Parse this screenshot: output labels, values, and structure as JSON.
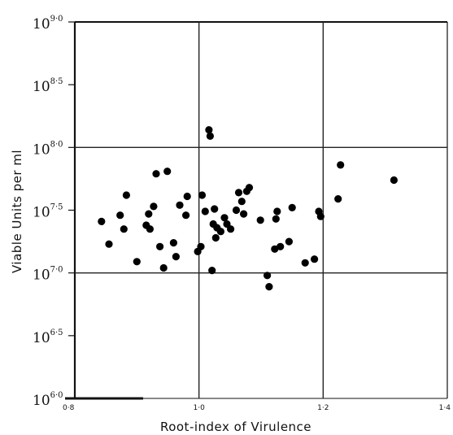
{
  "chart_data": {
    "type": "scatter",
    "title": "",
    "xlabel": "Root-index  of  Virulence",
    "ylabel": "Viable  Units per ml",
    "x_axis": {
      "min": 0.8,
      "max": 1.4,
      "ticks": [
        {
          "value": 0.8,
          "label": "0·8"
        },
        {
          "value": 1.0,
          "label": "1·0"
        },
        {
          "value": 1.2,
          "label": "1·2"
        },
        {
          "value": 1.4,
          "label": "1·4"
        }
      ]
    },
    "y_axis": {
      "scale": "log10",
      "min": 6.0,
      "max": 9.0,
      "ticks": [
        {
          "value": 6.0,
          "base": "10",
          "exp": "6·0"
        },
        {
          "value": 6.5,
          "base": "10",
          "exp": "6·5"
        },
        {
          "value": 7.0,
          "base": "10",
          "exp": "7·0"
        },
        {
          "value": 7.5,
          "base": "10",
          "exp": "7·5"
        },
        {
          "value": 8.0,
          "base": "10",
          "exp": "8·0"
        },
        {
          "value": 8.5,
          "base": "10",
          "exp": "8·5"
        },
        {
          "value": 9.0,
          "base": "10",
          "exp": "9·0"
        }
      ]
    },
    "grid": {
      "x": [
        1.0,
        1.2
      ],
      "y": [
        7.0,
        8.0
      ]
    },
    "points": [
      [
        0.843,
        7.41
      ],
      [
        0.855,
        7.23
      ],
      [
        0.873,
        7.46
      ],
      [
        0.879,
        7.35
      ],
      [
        0.883,
        7.62
      ],
      [
        0.9,
        7.09
      ],
      [
        0.915,
        7.38
      ],
      [
        0.919,
        7.47
      ],
      [
        0.921,
        7.35
      ],
      [
        0.927,
        7.53
      ],
      [
        0.931,
        7.79
      ],
      [
        0.937,
        7.21
      ],
      [
        0.943,
        7.04
      ],
      [
        0.949,
        7.81
      ],
      [
        0.959,
        7.24
      ],
      [
        0.963,
        7.13
      ],
      [
        0.969,
        7.54
      ],
      [
        0.979,
        7.46
      ],
      [
        0.981,
        7.61
      ],
      [
        0.998,
        7.17
      ],
      [
        1.003,
        7.21
      ],
      [
        1.005,
        7.62
      ],
      [
        1.01,
        7.49
      ],
      [
        1.016,
        8.14
      ],
      [
        1.018,
        8.09
      ],
      [
        1.021,
        7.02
      ],
      [
        1.023,
        7.39
      ],
      [
        1.025,
        7.51
      ],
      [
        1.027,
        7.28
      ],
      [
        1.029,
        7.36
      ],
      [
        1.035,
        7.33
      ],
      [
        1.041,
        7.44
      ],
      [
        1.045,
        7.39
      ],
      [
        1.051,
        7.35
      ],
      [
        1.06,
        7.5
      ],
      [
        1.064,
        7.64
      ],
      [
        1.069,
        7.57
      ],
      [
        1.072,
        7.47
      ],
      [
        1.077,
        7.65
      ],
      [
        1.081,
        7.68
      ],
      [
        1.099,
        7.42
      ],
      [
        1.11,
        6.98
      ],
      [
        1.113,
        6.89
      ],
      [
        1.122,
        7.19
      ],
      [
        1.124,
        7.43
      ],
      [
        1.126,
        7.49
      ],
      [
        1.131,
        7.21
      ],
      [
        1.145,
        7.25
      ],
      [
        1.15,
        7.52
      ],
      [
        1.171,
        7.08
      ],
      [
        1.186,
        7.11
      ],
      [
        1.193,
        7.49
      ],
      [
        1.196,
        7.45
      ],
      [
        1.224,
        7.59
      ],
      [
        1.228,
        7.86
      ],
      [
        1.314,
        7.74
      ]
    ]
  }
}
